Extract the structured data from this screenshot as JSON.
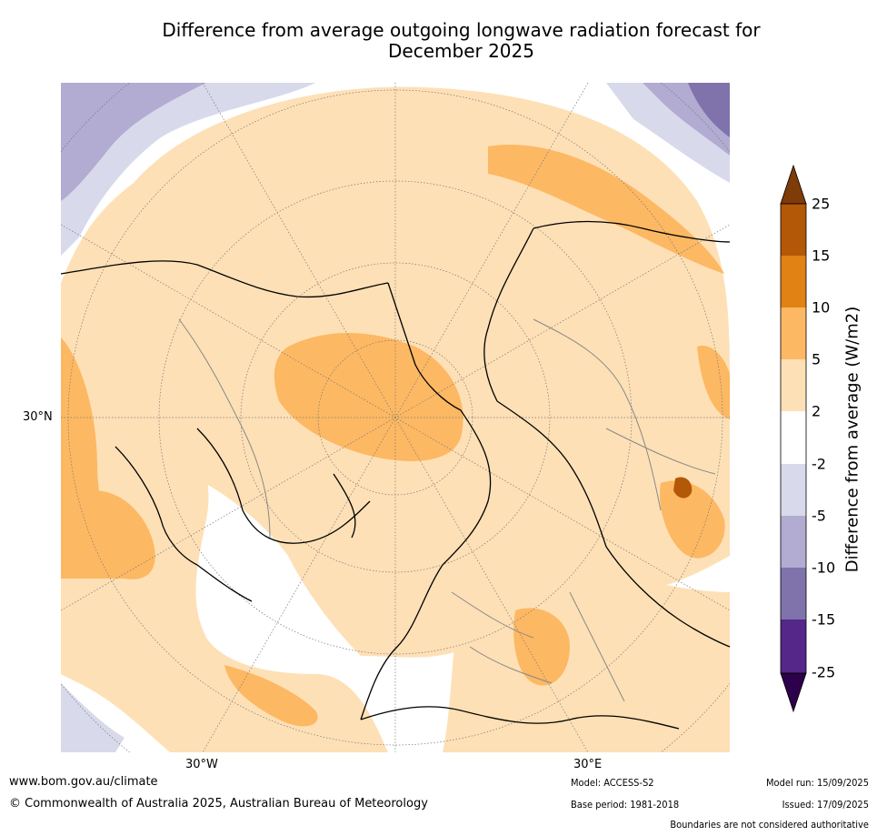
{
  "title": {
    "line1": "Difference from average outgoing longwave radiation forecast for",
    "line2": "December 2025"
  },
  "map": {
    "projection": "north-polar-stereographic",
    "labels": {
      "lat_30n": "30°N",
      "lon_30w": "30°W",
      "lon_30e": "30°E"
    }
  },
  "colorbar": {
    "title": "Difference from average (W/m2)",
    "ticks": [
      "25",
      "15",
      "10",
      "5",
      "2",
      "-2",
      "-5",
      "-10",
      "-15",
      "-25"
    ],
    "colors": {
      "above_25": "#7f3b08",
      "15_25": "#b35806",
      "10_15": "#e08214",
      "5_10": "#fdb863",
      "2_5": "#fee0b6",
      "neutral": "#ffffff",
      "neg2_neg5": "#d8daeb",
      "neg5_neg10": "#b2abd2",
      "neg10_neg15": "#8073ac",
      "neg15_neg25": "#542788",
      "below_neg25": "#2d004b"
    }
  },
  "footer": {
    "website": "www.bom.gov.au/climate",
    "copyright": "© Commonwealth of Australia 2025, Australian Bureau of Meteorology",
    "model": "Model: ACCESS-S2",
    "base_period": "Base period: 1981-2018",
    "model_run": "Model run: 15/09/2025",
    "issued": "Issued: 17/09/2025",
    "disclaimer": "Boundaries are not considered authoritative"
  }
}
